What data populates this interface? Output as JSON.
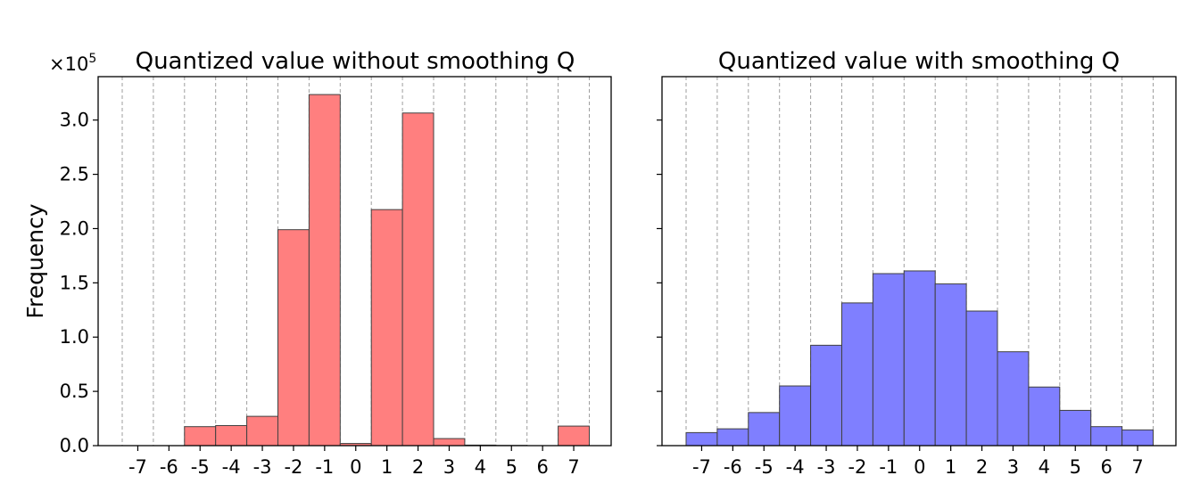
{
  "chart_data": [
    {
      "type": "bar",
      "title": "Quantized value without smoothing Q",
      "xlabel": "",
      "ylabel": "Frequency",
      "y_scale_label": "×10",
      "y_scale_exponent": "5",
      "categories": [
        "-7",
        "-6",
        "-5",
        "-4",
        "-3",
        "-2",
        "-1",
        "0",
        "1",
        "2",
        "3",
        "4",
        "5",
        "6",
        "7"
      ],
      "values": [
        0,
        0,
        17500,
        18500,
        27000,
        199000,
        323500,
        2000,
        217500,
        306500,
        6500,
        500,
        200,
        0,
        18000
      ],
      "ylim": [
        0,
        340000
      ],
      "yticks": [
        0,
        50000,
        100000,
        150000,
        200000,
        250000,
        300000
      ],
      "ytick_labels": [
        "0.0",
        "0.5",
        "1.0",
        "1.5",
        "2.0",
        "2.5",
        "3.0"
      ],
      "color": "#ff7f7f",
      "grid": "vertical dashed"
    },
    {
      "type": "bar",
      "title": "Quantized value with smoothing Q",
      "xlabel": "",
      "ylabel": "",
      "categories": [
        "-7",
        "-6",
        "-5",
        "-4",
        "-3",
        "-2",
        "-1",
        "0",
        "1",
        "2",
        "3",
        "4",
        "5",
        "6",
        "7"
      ],
      "values": [
        12000,
        15500,
        30500,
        55000,
        92500,
        131500,
        158500,
        161000,
        149000,
        124000,
        86500,
        54000,
        32500,
        17500,
        14500
      ],
      "ylim": [
        0,
        340000
      ],
      "color": "#7f7fff",
      "grid": "vertical dashed"
    }
  ]
}
